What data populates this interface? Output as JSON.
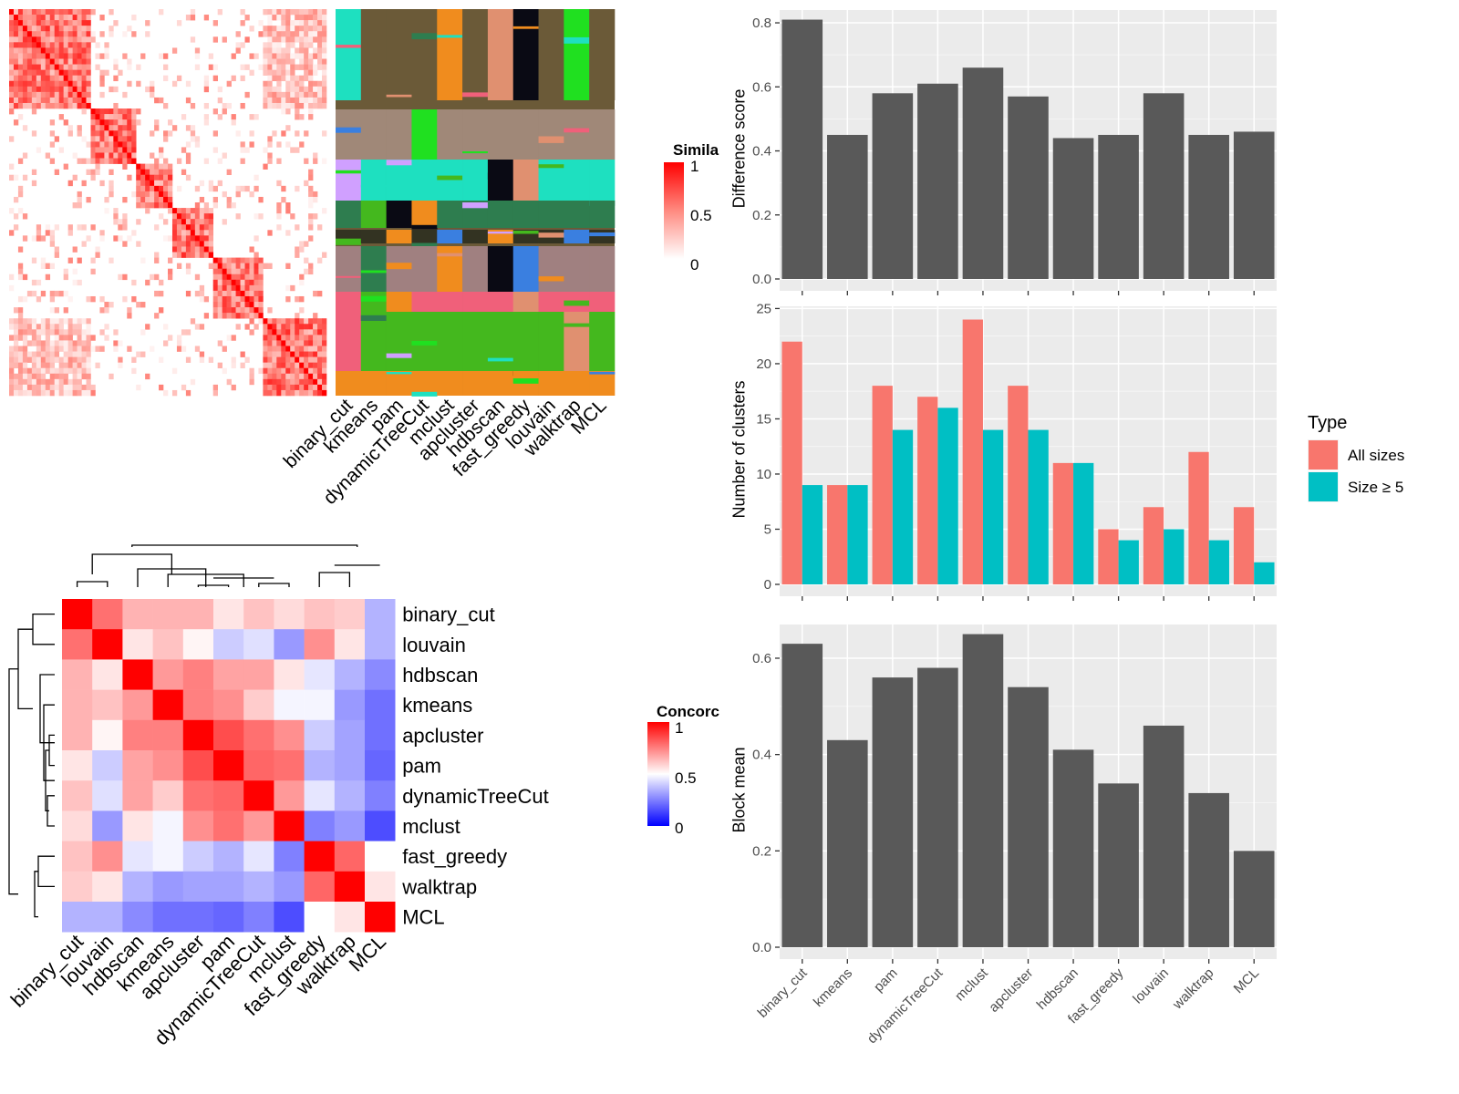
{
  "methods_order": [
    "binary_cut",
    "kmeans",
    "pam",
    "dynamicTreeCut",
    "mclust",
    "apcluster",
    "hdbscan",
    "fast_greedy",
    "louvain",
    "walktrap",
    "MCL"
  ],
  "similarity_panel": {
    "legend_title": "Simila",
    "legend_ticks": [
      "1",
      "0.5",
      "0"
    ],
    "column_labels": [
      "binary_cut",
      "kmeans",
      "pam",
      "dynamicTreeCut",
      "mclust",
      "apcluster",
      "hdbscan",
      "fast_greedy",
      "louvain",
      "walktrap",
      "MCL"
    ],
    "colors": {
      "high": "#ff0000",
      "mid": "#ff8a80",
      "low": "#ffffff"
    }
  },
  "concordance_panel": {
    "legend_title": "Concorc",
    "legend_ticks": [
      "1",
      "0.5",
      "0"
    ],
    "labels": [
      "binary_cut",
      "louvain",
      "hdbscan",
      "kmeans",
      "apcluster",
      "pam",
      "dynamicTreeCut",
      "mclust",
      "fast_greedy",
      "walktrap",
      "MCL"
    ],
    "colors": {
      "high": "#ff0000",
      "mid": "#ffffff",
      "low": "#0000ff"
    }
  },
  "chart_data": [
    {
      "type": "bar",
      "categories": [
        "binary_cut",
        "kmeans",
        "pam",
        "dynamicTreeCut",
        "mclust",
        "apcluster",
        "hdbscan",
        "fast_greedy",
        "louvain",
        "walktrap",
        "MCL"
      ],
      "values": [
        0.81,
        0.45,
        0.58,
        0.61,
        0.66,
        0.57,
        0.44,
        0.45,
        0.58,
        0.45,
        0.46
      ],
      "ylabel": "Difference score",
      "ylim": [
        0,
        0.84
      ],
      "yticks": [
        "0.0",
        "0.2",
        "0.4",
        "0.6",
        "0.8"
      ],
      "grid": true,
      "bar_color": "#595959"
    },
    {
      "type": "bar",
      "categories": [
        "binary_cut",
        "kmeans",
        "pam",
        "dynamicTreeCut",
        "mclust",
        "apcluster",
        "hdbscan",
        "fast_greedy",
        "louvain",
        "walktrap",
        "MCL"
      ],
      "series": [
        {
          "name": "All sizes",
          "values": [
            22,
            9,
            18,
            17,
            24,
            18,
            11,
            5,
            7,
            12,
            7
          ],
          "color": "#f8766d"
        },
        {
          "name": "Size ≥ 5",
          "values": [
            9,
            9,
            14,
            16,
            14,
            14,
            11,
            4,
            5,
            4,
            2
          ],
          "color": "#00bfc4"
        }
      ],
      "ylabel": "Number of clusters",
      "ylim": [
        0,
        25.2
      ],
      "yticks": [
        "0",
        "5",
        "10",
        "15",
        "20",
        "25"
      ],
      "legend": {
        "title": "Type",
        "placement": "right"
      },
      "grid": true
    },
    {
      "type": "bar",
      "categories": [
        "binary_cut",
        "kmeans",
        "pam",
        "dynamicTreeCut",
        "mclust",
        "apcluster",
        "hdbscan",
        "fast_greedy",
        "louvain",
        "walktrap",
        "MCL"
      ],
      "values": [
        0.63,
        0.43,
        0.56,
        0.58,
        0.65,
        0.54,
        0.41,
        0.34,
        0.46,
        0.32,
        0.2
      ],
      "ylabel": "Block mean",
      "ylim": [
        0,
        0.67
      ],
      "yticks": [
        "0.0",
        "0.2",
        "0.4",
        "0.6"
      ],
      "grid": true,
      "bar_color": "#595959"
    }
  ]
}
